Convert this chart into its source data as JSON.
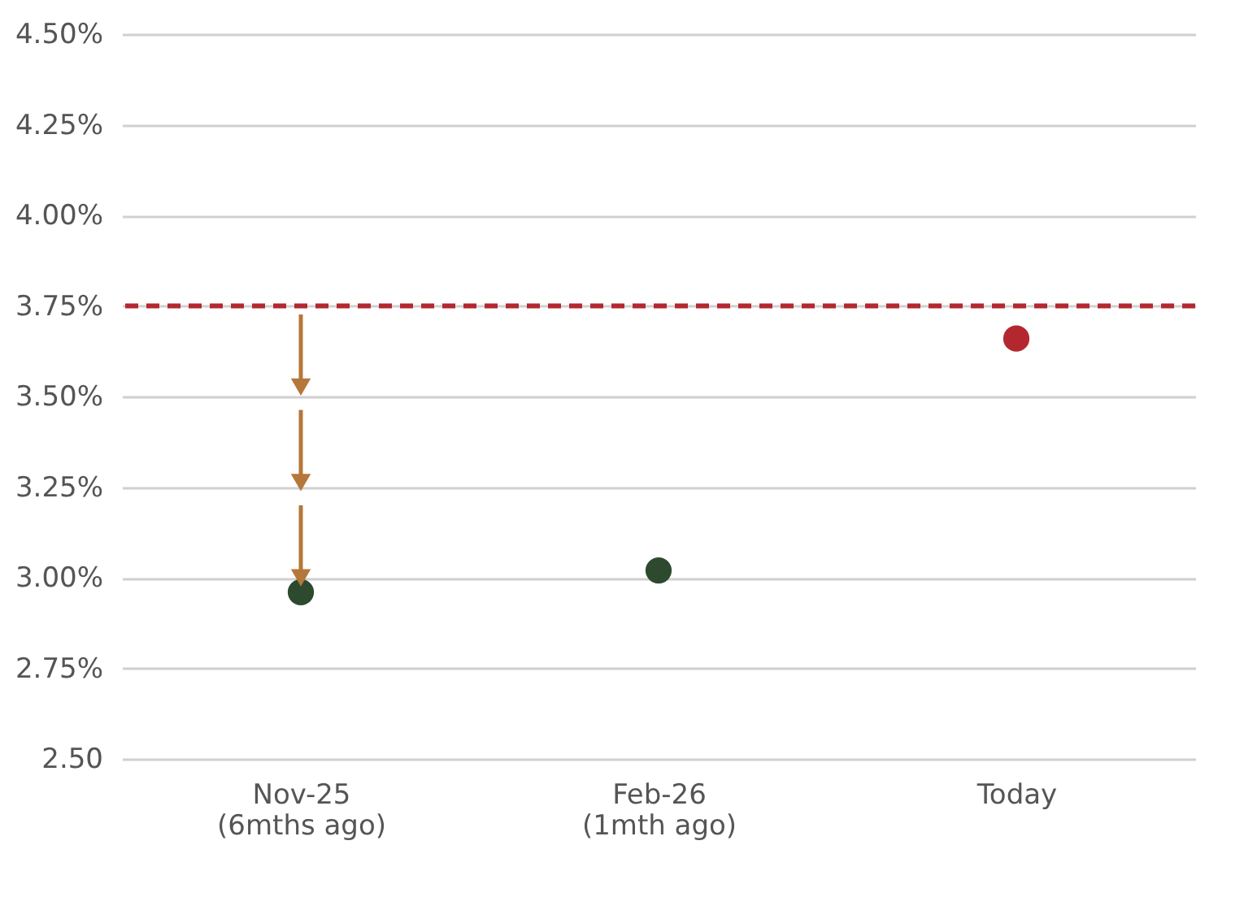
{
  "chart_data": {
    "type": "scatter",
    "categories": [
      "Nov-25\n(6mths ago)",
      "Feb-26\n(1mth ago)",
      "Today"
    ],
    "values": [
      2.96,
      3.02,
      3.66
    ],
    "colors": [
      "#2d4a2f",
      "#2d4a2f",
      "#b3282f"
    ],
    "marker": "circle",
    "ylim": [
      2.5,
      4.5
    ],
    "yticks": [
      {
        "value": 2.5,
        "label": "2.50"
      },
      {
        "value": 2.75,
        "label": "2.75%"
      },
      {
        "value": 3.0,
        "label": "3.00%"
      },
      {
        "value": 3.25,
        "label": "3.25%"
      },
      {
        "value": 3.5,
        "label": "3.50%"
      },
      {
        "value": 3.75,
        "label": "3.75%"
      },
      {
        "value": 4.0,
        "label": "4.00%"
      },
      {
        "value": 4.25,
        "label": "4.25%"
      },
      {
        "value": 4.5,
        "label": "4.50%"
      }
    ],
    "ref_lines": [
      {
        "axis": "y",
        "value": 3.75,
        "color": "#b3282f",
        "line_style": "dashed"
      }
    ],
    "grid": "y"
  }
}
